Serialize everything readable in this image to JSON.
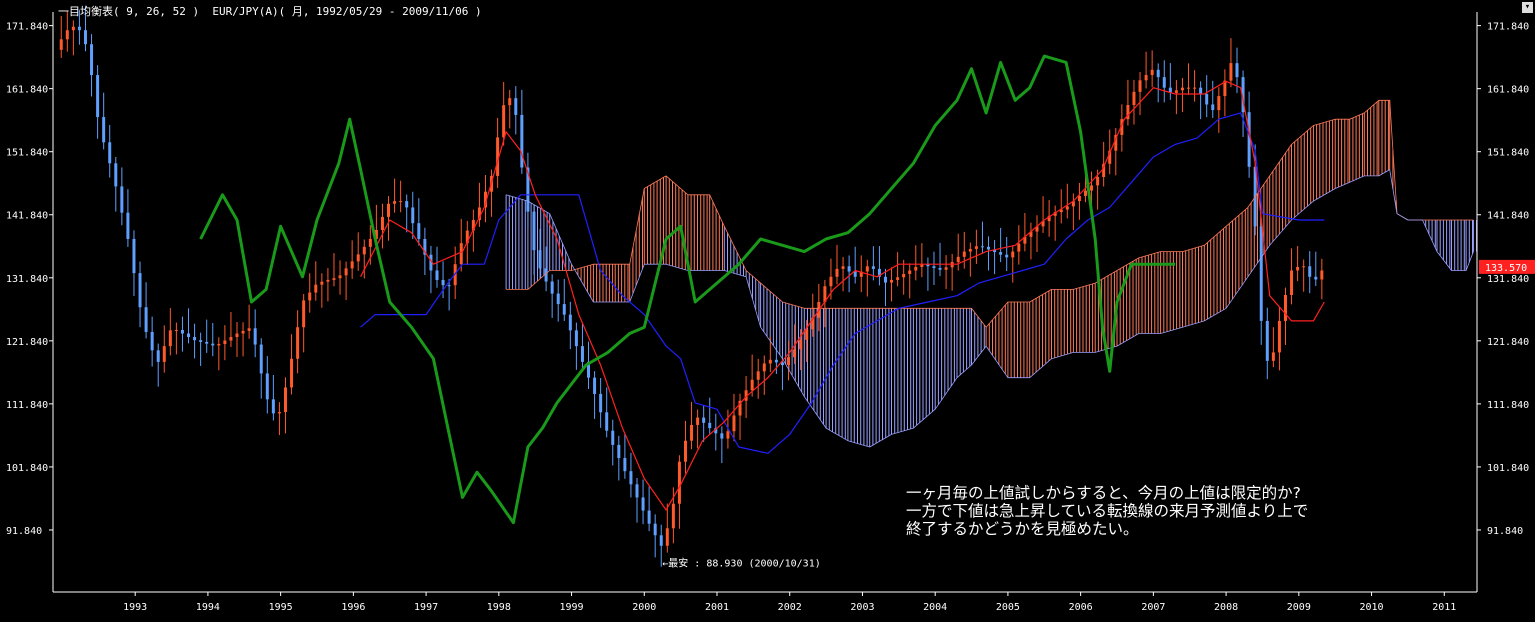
{
  "header": {
    "indicator": "一目均衡表( 9, 26, 52 )",
    "symbol": "EUR/JPY(A)( 月, 1992/05/29 - 2009/11/06 )"
  },
  "note_lines": [
    "一ヶ月毎の上値試しからすると、今月の上値は限定的か?",
    "一方で下値は急上昇している転換線の来月予測値より上で",
    "終了するかどうかを見極めたい。"
  ],
  "low_label": "←最安 : 88.930 (2000/10/31)",
  "last_price_label": "133.570",
  "chart_data": {
    "type": "candlestick",
    "indicator": "Ichimoku (9, 26, 52)",
    "y_ticks": [
      171.84,
      161.84,
      151.84,
      141.84,
      131.84,
      121.84,
      111.84,
      101.84,
      91.84
    ],
    "y_tick_labels": [
      "171.840",
      "161.840",
      "151.840",
      "141.840",
      "131.840",
      "121.840",
      "111.840",
      "101.840",
      "91.840"
    ],
    "ylim": [
      82,
      174
    ],
    "x_years": [
      "1993",
      "1994",
      "1995",
      "1996",
      "1997",
      "1998",
      "1999",
      "2000",
      "2001",
      "2002",
      "2003",
      "2004",
      "2005",
      "2006",
      "2007",
      "2008",
      "2009",
      "2010",
      "2011"
    ],
    "xlim": [
      1992.37,
      2011.95
    ],
    "colors": {
      "up": "#ff5a2a",
      "down": "#5fa0ff",
      "tenkan": "#ff2020",
      "kijun": "#2020ff",
      "chikou": "#1a9a1a",
      "kumo_bull": "#ff7a5a",
      "kumo_bear": "#9aa0ff",
      "axis": "#ffffff",
      "price_tag": "#ff2020"
    },
    "last_price": 133.57,
    "lowest": {
      "value": 88.93,
      "date": "2000/10/31"
    },
    "price_path": [
      [
        1992.4,
        168
      ],
      [
        1992.55,
        171
      ],
      [
        1992.7,
        172
      ],
      [
        1992.85,
        168
      ],
      [
        1993.0,
        156
      ],
      [
        1993.2,
        148
      ],
      [
        1993.4,
        138
      ],
      [
        1993.6,
        125
      ],
      [
        1993.8,
        118
      ],
      [
        1994.0,
        124
      ],
      [
        1994.3,
        122
      ],
      [
        1994.6,
        121
      ],
      [
        1994.9,
        123
      ],
      [
        1995.1,
        124
      ],
      [
        1995.3,
        113
      ],
      [
        1995.45,
        109
      ],
      [
        1995.6,
        116
      ],
      [
        1995.8,
        128
      ],
      [
        1996.0,
        131
      ],
      [
        1996.3,
        132
      ],
      [
        1996.6,
        136
      ],
      [
        1996.8,
        139
      ],
      [
        1997.0,
        144
      ],
      [
        1997.2,
        144
      ],
      [
        1997.4,
        138
      ],
      [
        1997.6,
        132
      ],
      [
        1997.8,
        130
      ],
      [
        1998.0,
        138
      ],
      [
        1998.2,
        142
      ],
      [
        1998.4,
        148
      ],
      [
        1998.55,
        159
      ],
      [
        1998.7,
        161
      ],
      [
        1998.85,
        146
      ],
      [
        1999.0,
        135
      ],
      [
        1999.2,
        130
      ],
      [
        1999.4,
        126
      ],
      [
        1999.6,
        120
      ],
      [
        1999.8,
        114
      ],
      [
        2000.0,
        107
      ],
      [
        2000.2,
        102
      ],
      [
        2000.4,
        97
      ],
      [
        2000.6,
        92
      ],
      [
        2000.75,
        89
      ],
      [
        2000.9,
        96
      ],
      [
        2001.0,
        104
      ],
      [
        2001.2,
        110
      ],
      [
        2001.4,
        108
      ],
      [
        2001.6,
        106
      ],
      [
        2001.8,
        112
      ],
      [
        2002.0,
        116
      ],
      [
        2002.2,
        119
      ],
      [
        2002.4,
        118
      ],
      [
        2002.6,
        121
      ],
      [
        2002.8,
        125
      ],
      [
        2003.0,
        131
      ],
      [
        2003.2,
        134
      ],
      [
        2003.4,
        132
      ],
      [
        2003.6,
        134
      ],
      [
        2003.8,
        131
      ],
      [
        2004.0,
        132
      ],
      [
        2004.3,
        134
      ],
      [
        2004.6,
        133
      ],
      [
        2004.9,
        136
      ],
      [
        2005.1,
        137
      ],
      [
        2005.3,
        136
      ],
      [
        2005.5,
        135
      ],
      [
        2005.7,
        138
      ],
      [
        2005.9,
        140
      ],
      [
        2006.1,
        142
      ],
      [
        2006.3,
        143
      ],
      [
        2006.5,
        145
      ],
      [
        2006.7,
        147
      ],
      [
        2006.9,
        152
      ],
      [
        2007.1,
        158
      ],
      [
        2007.3,
        163
      ],
      [
        2007.5,
        165
      ],
      [
        2007.7,
        161
      ],
      [
        2007.9,
        162
      ],
      [
        2008.1,
        162
      ],
      [
        2008.3,
        158
      ],
      [
        2008.45,
        162
      ],
      [
        2008.6,
        167
      ],
      [
        2008.75,
        157
      ],
      [
        2008.9,
        140
      ],
      [
        2009.0,
        122
      ],
      [
        2009.1,
        117
      ],
      [
        2009.25,
        126
      ],
      [
        2009.4,
        133
      ],
      [
        2009.55,
        134
      ],
      [
        2009.7,
        131
      ],
      [
        2009.85,
        133.57
      ]
    ],
    "tenkan": [
      [
        1996.6,
        132
      ],
      [
        1997.0,
        141
      ],
      [
        1997.3,
        139
      ],
      [
        1997.6,
        134
      ],
      [
        1998.0,
        136
      ],
      [
        1998.3,
        143
      ],
      [
        1998.6,
        155
      ],
      [
        1998.8,
        152
      ],
      [
        1999.0,
        145
      ],
      [
        1999.3,
        138
      ],
      [
        1999.6,
        126
      ],
      [
        1999.9,
        118
      ],
      [
        2000.2,
        108
      ],
      [
        2000.5,
        100
      ],
      [
        2000.8,
        95
      ],
      [
        2001.0,
        99
      ],
      [
        2001.3,
        106
      ],
      [
        2001.6,
        109
      ],
      [
        2001.9,
        113
      ],
      [
        2002.2,
        116
      ],
      [
        2002.5,
        120
      ],
      [
        2002.8,
        125
      ],
      [
        2003.1,
        130
      ],
      [
        2003.4,
        133
      ],
      [
        2003.7,
        132
      ],
      [
        2004.0,
        134
      ],
      [
        2004.4,
        134
      ],
      [
        2004.8,
        134
      ],
      [
        2005.2,
        136
      ],
      [
        2005.6,
        137
      ],
      [
        2006.0,
        141
      ],
      [
        2006.4,
        144
      ],
      [
        2006.8,
        149
      ],
      [
        2007.1,
        157
      ],
      [
        2007.5,
        162
      ],
      [
        2007.8,
        161
      ],
      [
        2008.2,
        161
      ],
      [
        2008.5,
        163
      ],
      [
        2008.7,
        162
      ],
      [
        2008.9,
        150
      ],
      [
        2009.1,
        129
      ],
      [
        2009.4,
        125
      ],
      [
        2009.7,
        125
      ],
      [
        2009.85,
        128
      ]
    ],
    "kijun": [
      [
        1996.6,
        124
      ],
      [
        1996.8,
        126
      ],
      [
        1997.2,
        126
      ],
      [
        1997.5,
        126
      ],
      [
        1997.8,
        131
      ],
      [
        1998.0,
        134
      ],
      [
        1998.3,
        134
      ],
      [
        1998.5,
        141
      ],
      [
        1998.8,
        145
      ],
      [
        1999.3,
        145
      ],
      [
        1999.6,
        145
      ],
      [
        1999.9,
        133
      ],
      [
        2000.2,
        129
      ],
      [
        2000.5,
        126
      ],
      [
        2000.8,
        121
      ],
      [
        2001.0,
        119
      ],
      [
        2001.2,
        112
      ],
      [
        2001.5,
        111
      ],
      [
        2001.8,
        105
      ],
      [
        2002.2,
        104
      ],
      [
        2002.5,
        107
      ],
      [
        2002.8,
        112
      ],
      [
        2003.1,
        118
      ],
      [
        2003.4,
        123
      ],
      [
        2003.7,
        125
      ],
      [
        2004.0,
        127
      ],
      [
        2004.4,
        128
      ],
      [
        2004.8,
        129
      ],
      [
        2005.1,
        131
      ],
      [
        2005.4,
        132
      ],
      [
        2005.7,
        133
      ],
      [
        2006.0,
        134
      ],
      [
        2006.3,
        138
      ],
      [
        2006.6,
        141
      ],
      [
        2006.9,
        143
      ],
      [
        2007.2,
        147
      ],
      [
        2007.5,
        151
      ],
      [
        2007.8,
        153
      ],
      [
        2008.1,
        154
      ],
      [
        2008.4,
        157
      ],
      [
        2008.7,
        158
      ],
      [
        2008.9,
        152
      ],
      [
        2009.0,
        142
      ],
      [
        2009.5,
        141
      ],
      [
        2009.85,
        141
      ]
    ],
    "chikou": [
      [
        1994.4,
        138
      ],
      [
        1994.7,
        145
      ],
      [
        1994.9,
        141
      ],
      [
        1995.1,
        128
      ],
      [
        1995.3,
        130
      ],
      [
        1995.5,
        140
      ],
      [
        1995.8,
        132
      ],
      [
        1996.0,
        141
      ],
      [
        1996.3,
        150
      ],
      [
        1996.45,
        157
      ],
      [
        1996.6,
        149
      ],
      [
        1996.8,
        138
      ],
      [
        1997.0,
        128
      ],
      [
        1997.3,
        124
      ],
      [
        1997.6,
        119
      ],
      [
        1997.8,
        108
      ],
      [
        1998.0,
        97
      ],
      [
        1998.2,
        101
      ],
      [
        1998.4,
        98
      ],
      [
        1998.7,
        93
      ],
      [
        1998.9,
        105
      ],
      [
        1999.1,
        108
      ],
      [
        1999.3,
        112
      ],
      [
        1999.5,
        115
      ],
      [
        1999.7,
        118
      ],
      [
        2000.0,
        120
      ],
      [
        2000.3,
        123
      ],
      [
        2000.5,
        124
      ],
      [
        2000.8,
        138
      ],
      [
        2001.0,
        140
      ],
      [
        2001.2,
        128
      ],
      [
        2001.4,
        130
      ],
      [
        2001.6,
        132
      ],
      [
        2001.8,
        134
      ],
      [
        2002.1,
        138
      ],
      [
        2002.4,
        137
      ],
      [
        2002.7,
        136
      ],
      [
        2003.0,
        138
      ],
      [
        2003.3,
        139
      ],
      [
        2003.6,
        142
      ],
      [
        2003.9,
        146
      ],
      [
        2004.2,
        150
      ],
      [
        2004.5,
        156
      ],
      [
        2004.8,
        160
      ],
      [
        2005.0,
        165
      ],
      [
        2005.2,
        158
      ],
      [
        2005.4,
        166
      ],
      [
        2005.6,
        160
      ],
      [
        2005.8,
        162
      ],
      [
        2006.0,
        167
      ],
      [
        2006.3,
        166
      ],
      [
        2006.5,
        155
      ],
      [
        2006.7,
        138
      ],
      [
        2006.8,
        124
      ],
      [
        2006.9,
        117
      ],
      [
        2007.0,
        128
      ],
      [
        2007.2,
        134
      ],
      [
        2007.5,
        134
      ],
      [
        2007.8,
        134
      ]
    ],
    "kumo_segments": [
      {
        "t": 1998.6,
        "a": 130,
        "b": 145,
        "c": "down"
      },
      {
        "t": 1998.9,
        "a": 130,
        "b": 144,
        "c": "down"
      },
      {
        "t": 1999.2,
        "a": 133,
        "b": 142,
        "c": "down"
      },
      {
        "t": 1999.5,
        "a": 133,
        "b": 134,
        "c": "up"
      },
      {
        "t": 1999.8,
        "a": 134,
        "b": 128,
        "c": "up"
      },
      {
        "t": 2000.1,
        "a": 134,
        "b": 128,
        "c": "up"
      },
      {
        "t": 2000.3,
        "a": 134,
        "b": 128,
        "c": "up"
      },
      {
        "t": 2000.5,
        "a": 146,
        "b": 134,
        "c": "up"
      },
      {
        "t": 2000.8,
        "a": 148,
        "b": 134,
        "c": "up"
      },
      {
        "t": 2001.1,
        "a": 145,
        "b": 133,
        "c": "up"
      },
      {
        "t": 2001.4,
        "a": 145,
        "b": 133,
        "c": "up"
      },
      {
        "t": 2001.6,
        "a": 140,
        "b": 133,
        "c": "down"
      },
      {
        "t": 2001.9,
        "a": 133,
        "b": 132,
        "c": "down"
      },
      {
        "t": 2002.1,
        "a": 131,
        "b": 124,
        "c": "down"
      },
      {
        "t": 2002.4,
        "a": 128,
        "b": 119,
        "c": "down"
      },
      {
        "t": 2002.7,
        "a": 127,
        "b": 113,
        "c": "down"
      },
      {
        "t": 2003.0,
        "a": 127,
        "b": 108,
        "c": "down"
      },
      {
        "t": 2003.3,
        "a": 127,
        "b": 106,
        "c": "down"
      },
      {
        "t": 2003.6,
        "a": 127,
        "b": 105,
        "c": "down"
      },
      {
        "t": 2003.9,
        "a": 127,
        "b": 107,
        "c": "down"
      },
      {
        "t": 2004.2,
        "a": 127,
        "b": 108,
        "c": "down"
      },
      {
        "t": 2004.5,
        "a": 127,
        "b": 111,
        "c": "down"
      },
      {
        "t": 2004.8,
        "a": 127,
        "b": 116,
        "c": "down"
      },
      {
        "t": 2005.0,
        "a": 127,
        "b": 118,
        "c": "down"
      },
      {
        "t": 2005.2,
        "a": 124,
        "b": 121,
        "c": "up"
      },
      {
        "t": 2005.5,
        "a": 128,
        "b": 116,
        "c": "up"
      },
      {
        "t": 2005.8,
        "a": 128,
        "b": 116,
        "c": "up"
      },
      {
        "t": 2006.1,
        "a": 130,
        "b": 119,
        "c": "up"
      },
      {
        "t": 2006.4,
        "a": 130,
        "b": 120,
        "c": "up"
      },
      {
        "t": 2006.7,
        "a": 131,
        "b": 120,
        "c": "up"
      },
      {
        "t": 2007.0,
        "a": 133,
        "b": 121,
        "c": "up"
      },
      {
        "t": 2007.3,
        "a": 135,
        "b": 123,
        "c": "up"
      },
      {
        "t": 2007.6,
        "a": 136,
        "b": 123,
        "c": "up"
      },
      {
        "t": 2007.9,
        "a": 136,
        "b": 124,
        "c": "up"
      },
      {
        "t": 2008.2,
        "a": 137,
        "b": 125,
        "c": "up"
      },
      {
        "t": 2008.5,
        "a": 140,
        "b": 127,
        "c": "up"
      },
      {
        "t": 2008.8,
        "a": 143,
        "b": 132,
        "c": "up"
      },
      {
        "t": 2009.1,
        "a": 148,
        "b": 137,
        "c": "up"
      },
      {
        "t": 2009.4,
        "a": 153,
        "b": 141,
        "c": "up"
      },
      {
        "t": 2009.7,
        "a": 156,
        "b": 144,
        "c": "up"
      },
      {
        "t": 2010.0,
        "a": 157,
        "b": 146,
        "c": "up"
      },
      {
        "t": 2010.2,
        "a": 157,
        "b": 147,
        "c": "up"
      },
      {
        "t": 2010.4,
        "a": 158,
        "b": 148,
        "c": "up"
      },
      {
        "t": 2010.6,
        "a": 160,
        "b": 148,
        "c": "up"
      },
      {
        "t": 2010.75,
        "a": 160,
        "b": 149,
        "c": "up"
      },
      {
        "t": 2010.85,
        "a": 142,
        "b": 142,
        "c": "up"
      },
      {
        "t": 2011.0,
        "a": 141,
        "b": 141,
        "c": "up"
      },
      {
        "t": 2011.2,
        "a": 141,
        "b": 141,
        "c": "down"
      },
      {
        "t": 2011.4,
        "a": 141,
        "b": 136,
        "c": "down"
      },
      {
        "t": 2011.6,
        "a": 141,
        "b": 133,
        "c": "down"
      },
      {
        "t": 2011.8,
        "a": 141,
        "b": 133,
        "c": "down"
      },
      {
        "t": 2011.9,
        "a": 141,
        "b": 136,
        "c": "down"
      }
    ]
  }
}
